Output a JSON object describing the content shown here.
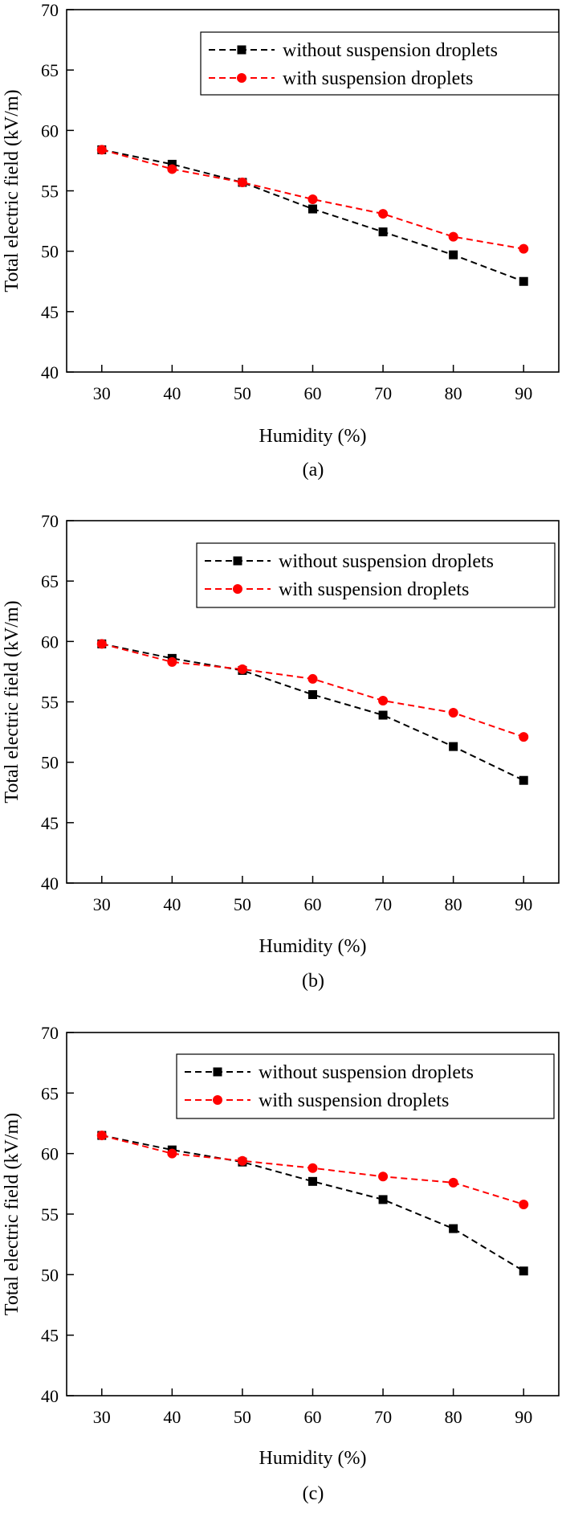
{
  "chart_data": [
    {
      "type": "line",
      "panel_label": "(a)",
      "xlabel": "Humidity (%)",
      "ylabel": "Total electric field (kV/m)",
      "xlim": [
        25,
        95
      ],
      "ylim": [
        40,
        70
      ],
      "xticks": [
        30,
        40,
        50,
        60,
        70,
        80,
        90
      ],
      "yticks": [
        40,
        45,
        50,
        55,
        60,
        65,
        70
      ],
      "legend_position": "top-right",
      "series": [
        {
          "name": "without suspension droplets",
          "color": "#000000",
          "marker": "square",
          "x": [
            30,
            40,
            50,
            60,
            70,
            80,
            90
          ],
          "values": [
            58.4,
            57.2,
            55.7,
            53.5,
            51.6,
            49.7,
            47.5
          ]
        },
        {
          "name": "with suspension droplets",
          "color": "#ff0000",
          "marker": "circle",
          "x": [
            30,
            40,
            50,
            60,
            70,
            80,
            90
          ],
          "values": [
            58.4,
            56.8,
            55.7,
            54.3,
            53.1,
            51.2,
            50.2
          ]
        }
      ]
    },
    {
      "type": "line",
      "panel_label": "(b)",
      "xlabel": "Humidity (%)",
      "ylabel": "Total electric field (kV/m)",
      "xlim": [
        25,
        95
      ],
      "ylim": [
        40,
        70
      ],
      "xticks": [
        30,
        40,
        50,
        60,
        70,
        80,
        90
      ],
      "yticks": [
        40,
        45,
        50,
        55,
        60,
        65,
        70
      ],
      "legend_position": "top-right",
      "series": [
        {
          "name": "without suspension droplets",
          "color": "#000000",
          "marker": "square",
          "x": [
            30,
            40,
            50,
            60,
            70,
            80,
            90
          ],
          "values": [
            59.8,
            58.6,
            57.6,
            55.6,
            53.9,
            51.3,
            48.5
          ]
        },
        {
          "name": "with suspension droplets",
          "color": "#ff0000",
          "marker": "circle",
          "x": [
            30,
            40,
            50,
            60,
            70,
            80,
            90
          ],
          "values": [
            59.8,
            58.3,
            57.7,
            56.9,
            55.1,
            54.1,
            52.1
          ]
        }
      ]
    },
    {
      "type": "line",
      "panel_label": "(c)",
      "xlabel": "Humidity (%)",
      "ylabel": "Total electric field (kV/m)",
      "xlim": [
        25,
        95
      ],
      "ylim": [
        40,
        70
      ],
      "xticks": [
        30,
        40,
        50,
        60,
        70,
        80,
        90
      ],
      "yticks": [
        40,
        45,
        50,
        55,
        60,
        65,
        70
      ],
      "legend_position": "top-right",
      "series": [
        {
          "name": "without suspension droplets",
          "color": "#000000",
          "marker": "square",
          "x": [
            30,
            40,
            50,
            60,
            70,
            80,
            90
          ],
          "values": [
            61.5,
            60.3,
            59.3,
            57.7,
            56.2,
            53.8,
            50.3
          ]
        },
        {
          "name": "with suspension droplets",
          "color": "#ff0000",
          "marker": "circle",
          "x": [
            30,
            40,
            50,
            60,
            70,
            80,
            90
          ],
          "values": [
            61.5,
            60.0,
            59.4,
            58.8,
            58.1,
            57.6,
            55.8
          ]
        }
      ]
    }
  ]
}
